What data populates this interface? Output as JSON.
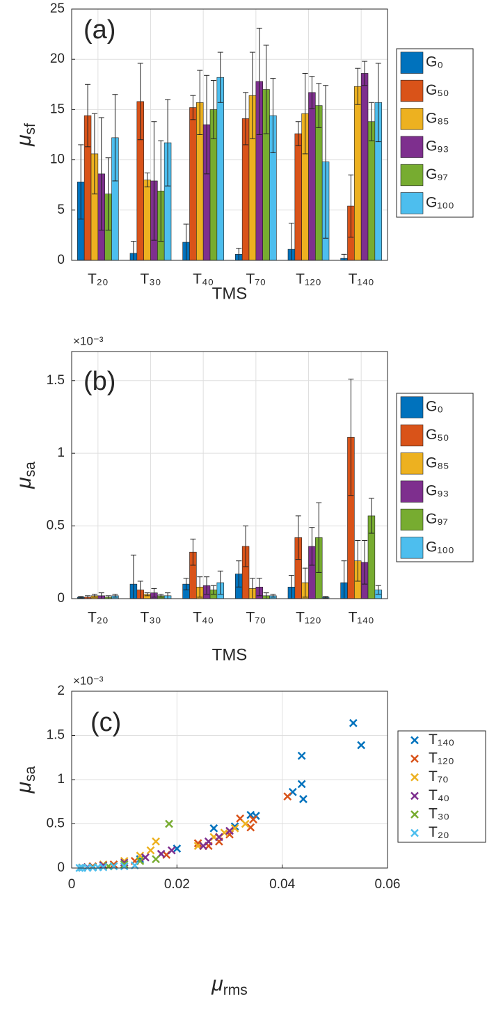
{
  "chart_data": [
    {
      "type": "bar",
      "panel_label": "(a)",
      "categories": [
        "T₂₀",
        "T₃₀",
        "T₄₀",
        "T₇₀",
        "T₁₂₀",
        "T₁₄₀"
      ],
      "series": [
        {
          "name": "G₀",
          "color": "#0072bd",
          "values": [
            7.8,
            0.7,
            1.8,
            0.6,
            1.1,
            0.2
          ],
          "errors": [
            3.7,
            1.2,
            1.8,
            0.6,
            2.6,
            0.4
          ]
        },
        {
          "name": "G₅₀",
          "color": "#d95319",
          "values": [
            14.4,
            15.8,
            15.2,
            14.1,
            12.6,
            5.4
          ],
          "errors": [
            3.1,
            3.8,
            1.2,
            2.6,
            1.2,
            3.1
          ]
        },
        {
          "name": "G₈₅",
          "color": "#edb120",
          "values": [
            10.6,
            8.0,
            15.7,
            16.4,
            14.6,
            17.3
          ],
          "errors": [
            4.0,
            0.7,
            3.2,
            4.3,
            4.0,
            1.8
          ]
        },
        {
          "name": "G₉₃",
          "color": "#7e2f8e",
          "values": [
            8.6,
            7.9,
            13.5,
            17.8,
            16.7,
            18.6
          ],
          "errors": [
            5.6,
            5.9,
            4.9,
            5.3,
            1.6,
            1.2
          ]
        },
        {
          "name": "G₉₇",
          "color": "#77ac30",
          "values": [
            6.6,
            6.9,
            15.0,
            17.0,
            15.4,
            13.8
          ],
          "errors": [
            3.6,
            5.0,
            2.9,
            4.4,
            2.2,
            1.9
          ]
        },
        {
          "name": "G₁₀₀",
          "color": "#4dbeee",
          "values": [
            12.2,
            11.7,
            18.2,
            14.4,
            9.8,
            15.7
          ],
          "errors": [
            4.3,
            4.3,
            2.5,
            3.7,
            7.6,
            3.9
          ]
        }
      ],
      "ylim": [
        0,
        25
      ],
      "yticks": [
        0,
        5,
        10,
        15,
        20,
        25
      ],
      "grid": true,
      "xlabel": "TMS",
      "ylabel": {
        "symbol": "μ",
        "subscript": "sf"
      },
      "legend": "outside-right"
    },
    {
      "type": "bar",
      "panel_label": "(b)",
      "categories": [
        "T₂₀",
        "T₃₀",
        "T₄₀",
        "T₇₀",
        "T₁₂₀",
        "T₁₄₀"
      ],
      "series": [
        {
          "name": "G₀",
          "color": "#0072bd",
          "values": [
            0.01,
            0.1,
            0.1,
            0.17,
            0.08,
            0.11
          ],
          "errors": [
            0.005,
            0.2,
            0.04,
            0.09,
            0.08,
            0.15
          ]
        },
        {
          "name": "G₅₀",
          "color": "#d95319",
          "values": [
            0.01,
            0.06,
            0.32,
            0.36,
            0.42,
            1.11
          ],
          "errors": [
            0.01,
            0.06,
            0.09,
            0.14,
            0.15,
            0.4
          ]
        },
        {
          "name": "G₈₅",
          "color": "#edb120",
          "values": [
            0.02,
            0.03,
            0.08,
            0.07,
            0.11,
            0.26
          ],
          "errors": [
            0.01,
            0.01,
            0.07,
            0.07,
            0.1,
            0.14
          ]
        },
        {
          "name": "G₉₃",
          "color": "#7e2f8e",
          "values": [
            0.02,
            0.04,
            0.09,
            0.08,
            0.36,
            0.25
          ],
          "errors": [
            0.02,
            0.03,
            0.06,
            0.06,
            0.13,
            0.15
          ]
        },
        {
          "name": "G₉₇",
          "color": "#77ac30",
          "values": [
            0.01,
            0.02,
            0.06,
            0.02,
            0.42,
            0.57
          ],
          "errors": [
            0.01,
            0.01,
            0.03,
            0.02,
            0.24,
            0.12
          ]
        },
        {
          "name": "G₁₀₀",
          "color": "#4dbeee",
          "values": [
            0.02,
            0.02,
            0.11,
            0.02,
            0.01,
            0.06
          ],
          "errors": [
            0.01,
            0.02,
            0.08,
            0.01,
            0.005,
            0.03
          ]
        }
      ],
      "ylim": [
        0,
        1.7
      ],
      "yticks": [
        0,
        0.5,
        1,
        1.5
      ],
      "y_multiplier": "×10⁻³",
      "grid": true,
      "xlabel": "TMS",
      "ylabel": {
        "symbol": "μ",
        "subscript": "sa"
      },
      "legend": "outside-right"
    },
    {
      "type": "scatter",
      "panel_label": "(c)",
      "series": [
        {
          "name": "T₁₄₀",
          "color": "#0072bd",
          "x": [
            0.0535,
            0.055,
            0.0437,
            0.0437,
            0.044,
            0.042,
            0.035,
            0.034,
            0.031,
            0.027,
            0.02,
            0.013,
            0.006,
            0.003
          ],
          "values": [
            1.64,
            1.39,
            1.27,
            0.95,
            0.78,
            0.86,
            0.59,
            0.6,
            0.47,
            0.45,
            0.22,
            0.1,
            0.03,
            0.01
          ]
        },
        {
          "name": "T₁₂₀",
          "color": "#d95319",
          "x": [
            0.041,
            0.0345,
            0.034,
            0.032,
            0.03,
            0.028,
            0.026,
            0.024,
            0.018,
            0.012,
            0.008,
            0.004
          ],
          "values": [
            0.81,
            0.55,
            0.46,
            0.56,
            0.38,
            0.3,
            0.25,
            0.28,
            0.15,
            0.08,
            0.04,
            0.02
          ]
        },
        {
          "name": "T₇₀",
          "color": "#edb120",
          "x": [
            0.033,
            0.031,
            0.029,
            0.027,
            0.024,
            0.016,
            0.015,
            0.013,
            0.01,
            0.006,
            0.003
          ],
          "values": [
            0.5,
            0.45,
            0.4,
            0.35,
            0.25,
            0.3,
            0.2,
            0.14,
            0.08,
            0.04,
            0.01
          ]
        },
        {
          "name": "T₄₀",
          "color": "#7e2f8e",
          "x": [
            0.03,
            0.028,
            0.026,
            0.025,
            0.019,
            0.017,
            0.014,
            0.01,
            0.006,
            0.003,
            0.002
          ],
          "values": [
            0.42,
            0.35,
            0.3,
            0.25,
            0.2,
            0.16,
            0.12,
            0.06,
            0.03,
            0.01,
            0.005
          ]
        },
        {
          "name": "T₃₀",
          "color": "#77ac30",
          "x": [
            0.0185,
            0.016,
            0.013,
            0.01,
            0.007,
            0.004,
            0.002
          ],
          "values": [
            0.5,
            0.1,
            0.08,
            0.04,
            0.02,
            0.01,
            0.005
          ]
        },
        {
          "name": "T₂₀",
          "color": "#4dbeee",
          "x": [
            0.012,
            0.01,
            0.008,
            0.006,
            0.005,
            0.004,
            0.003,
            0.002,
            0.0015
          ],
          "values": [
            0.03,
            0.02,
            0.02,
            0.01,
            0.01,
            0.005,
            0.003,
            0.002,
            0.001
          ]
        }
      ],
      "xlim": [
        0,
        0.06
      ],
      "xticks": [
        0,
        0.02,
        0.04,
        0.06
      ],
      "ylim": [
        0,
        2
      ],
      "yticks": [
        0,
        0.5,
        1,
        1.5,
        2
      ],
      "y_multiplier": "×10⁻³",
      "grid": true,
      "xlabel": {
        "symbol": "μ",
        "subscript": "rms"
      },
      "ylabel": {
        "symbol": "μ",
        "subscript": "sa"
      },
      "legend": "outside-right"
    }
  ]
}
